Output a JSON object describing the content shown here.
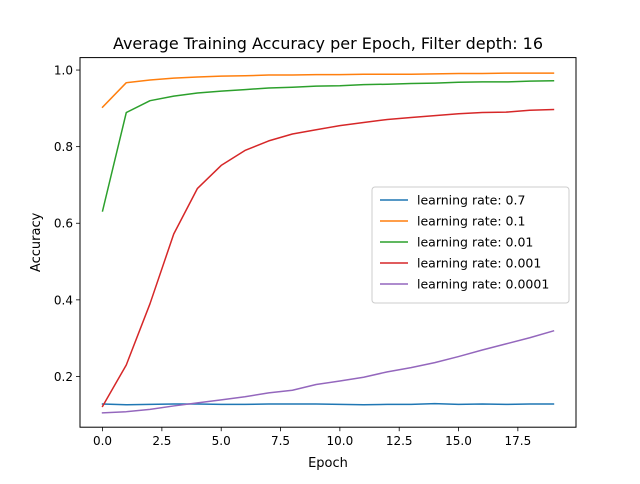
{
  "chart_data": {
    "type": "line",
    "title": "Average Training Accuracy per Epoch, Filter depth: 16",
    "xlabel": "Epoch",
    "ylabel": "Accuracy",
    "xlim": [
      -0.95,
      19.95
    ],
    "ylim": [
      0.0675,
      1.0325
    ],
    "x_ticks": [
      0.0,
      2.5,
      5.0,
      7.5,
      10.0,
      12.5,
      15.0,
      17.5
    ],
    "x_tick_labels": [
      "0.0",
      "2.5",
      "5.0",
      "7.5",
      "10.0",
      "12.5",
      "15.0",
      "17.5"
    ],
    "y_ticks": [
      0.2,
      0.4,
      0.6,
      0.8,
      1.0
    ],
    "y_tick_labels": [
      "0.2",
      "0.4",
      "0.6",
      "0.8",
      "1.0"
    ],
    "grid": false,
    "legend_position": "center-right",
    "x": [
      0,
      1,
      2,
      3,
      4,
      5,
      6,
      7,
      8,
      9,
      10,
      11,
      12,
      13,
      14,
      15,
      16,
      17,
      18,
      19
    ],
    "series": [
      {
        "name": "learning rate: 0.7",
        "color": "#1f77b4",
        "values": [
          0.128,
          0.126,
          0.127,
          0.128,
          0.128,
          0.127,
          0.127,
          0.128,
          0.128,
          0.128,
          0.127,
          0.126,
          0.127,
          0.127,
          0.129,
          0.127,
          0.128,
          0.127,
          0.128,
          0.128
        ]
      },
      {
        "name": "learning rate: 0.1",
        "color": "#ff7f0e",
        "values": [
          0.903,
          0.967,
          0.974,
          0.979,
          0.982,
          0.984,
          0.985,
          0.987,
          0.987,
          0.988,
          0.988,
          0.989,
          0.989,
          0.989,
          0.99,
          0.991,
          0.991,
          0.992,
          0.992,
          0.992
        ]
      },
      {
        "name": "learning rate: 0.01",
        "color": "#2ca02c",
        "values": [
          0.632,
          0.889,
          0.92,
          0.932,
          0.94,
          0.945,
          0.949,
          0.953,
          0.955,
          0.958,
          0.959,
          0.962,
          0.963,
          0.965,
          0.966,
          0.968,
          0.969,
          0.969,
          0.971,
          0.972
        ]
      },
      {
        "name": "learning rate: 0.001",
        "color": "#d62728",
        "values": [
          0.122,
          0.23,
          0.39,
          0.572,
          0.691,
          0.751,
          0.79,
          0.815,
          0.833,
          0.844,
          0.855,
          0.863,
          0.871,
          0.876,
          0.881,
          0.886,
          0.889,
          0.89,
          0.895,
          0.897
        ]
      },
      {
        "name": "learning rate: 0.0001",
        "color": "#9467bd",
        "values": [
          0.105,
          0.108,
          0.114,
          0.123,
          0.131,
          0.139,
          0.147,
          0.157,
          0.164,
          0.179,
          0.188,
          0.198,
          0.212,
          0.223,
          0.236,
          0.252,
          0.269,
          0.285,
          0.301,
          0.319
        ]
      }
    ]
  }
}
